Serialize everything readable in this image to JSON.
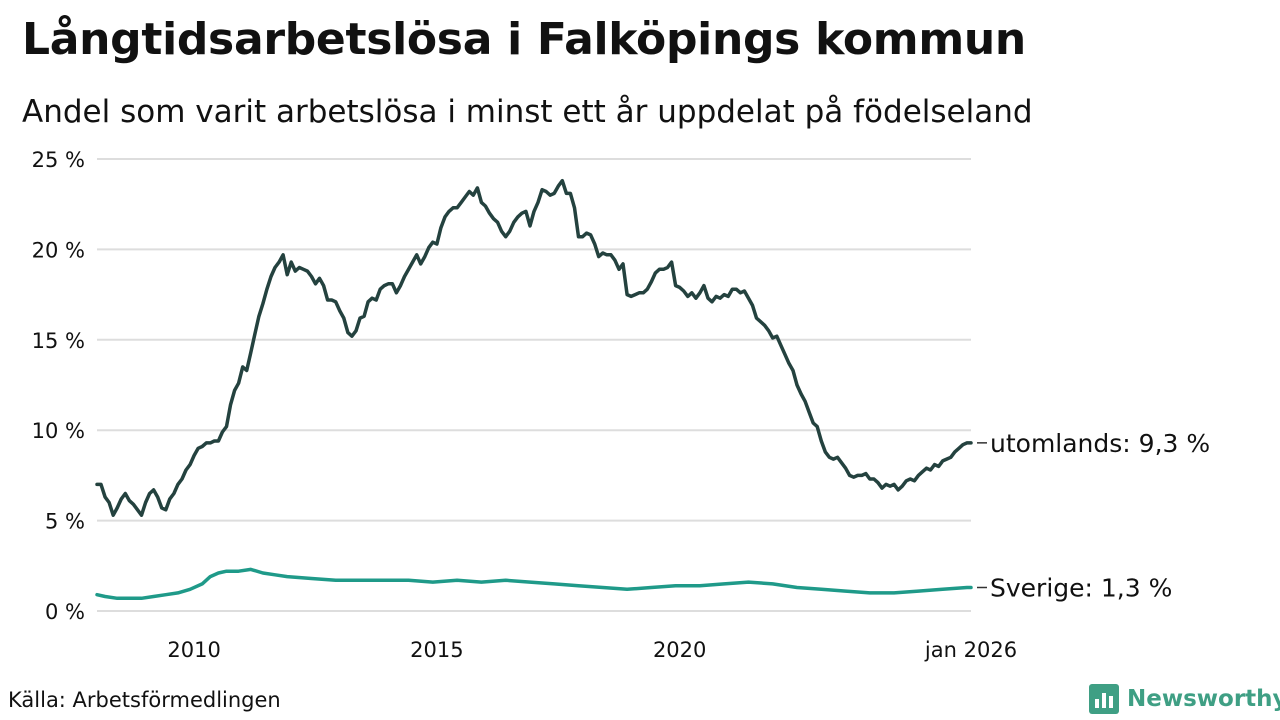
{
  "chart_data": {
    "type": "line",
    "title": "Långtidsarbetslösa i Falköpings kommun",
    "subtitle": "Andel som varit arbetslösa i minst ett år uppdelat på födelseland",
    "xlabel": "",
    "ylabel": "",
    "ylim": [
      0,
      25
    ],
    "xlim": [
      "2008-01",
      "2026-01"
    ],
    "y_ticks": [
      "0 %",
      "5 %",
      "10 %",
      "15 %",
      "20 %",
      "25 %"
    ],
    "x_ticks": [
      "2010",
      "2015",
      "2020",
      "jan 2026"
    ],
    "grid": true,
    "legend": "end-of-line labels",
    "series": [
      {
        "name": "utomlands",
        "end_label": "utomlands: 9,3 %",
        "color": "#24423f",
        "values": [
          [
            "2008-01",
            7.0
          ],
          [
            "2008-02",
            7.0
          ],
          [
            "2008-03",
            6.3
          ],
          [
            "2008-04",
            6.0
          ],
          [
            "2008-05",
            5.3
          ],
          [
            "2008-06",
            5.7
          ],
          [
            "2008-07",
            6.2
          ],
          [
            "2008-08",
            6.5
          ],
          [
            "2008-09",
            6.1
          ],
          [
            "2008-10",
            5.9
          ],
          [
            "2008-11",
            5.6
          ],
          [
            "2008-12",
            5.3
          ],
          [
            "2009-01",
            6.0
          ],
          [
            "2009-02",
            6.5
          ],
          [
            "2009-03",
            6.7
          ],
          [
            "2009-04",
            6.3
          ],
          [
            "2009-05",
            5.7
          ],
          [
            "2009-06",
            5.6
          ],
          [
            "2009-07",
            6.2
          ],
          [
            "2009-08",
            6.5
          ],
          [
            "2009-09",
            7.0
          ],
          [
            "2009-10",
            7.3
          ],
          [
            "2009-11",
            7.8
          ],
          [
            "2009-12",
            8.1
          ],
          [
            "2010-01",
            8.6
          ],
          [
            "2010-02",
            9.0
          ],
          [
            "2010-03",
            9.1
          ],
          [
            "2010-04",
            9.3
          ],
          [
            "2010-05",
            9.3
          ],
          [
            "2010-06",
            9.4
          ],
          [
            "2010-07",
            9.4
          ],
          [
            "2010-08",
            9.9
          ],
          [
            "2010-09",
            10.2
          ],
          [
            "2010-10",
            11.4
          ],
          [
            "2010-11",
            12.2
          ],
          [
            "2010-12",
            12.6
          ],
          [
            "2011-01",
            13.5
          ],
          [
            "2011-02",
            13.3
          ],
          [
            "2011-03",
            14.3
          ],
          [
            "2011-04",
            15.3
          ],
          [
            "2011-05",
            16.3
          ],
          [
            "2011-06",
            17.0
          ],
          [
            "2011-07",
            17.8
          ],
          [
            "2011-08",
            18.5
          ],
          [
            "2011-09",
            19.0
          ],
          [
            "2011-10",
            19.3
          ],
          [
            "2011-11",
            19.7
          ],
          [
            "2011-12",
            18.6
          ],
          [
            "2012-01",
            19.3
          ],
          [
            "2012-02",
            18.8
          ],
          [
            "2012-03",
            19.0
          ],
          [
            "2012-04",
            18.9
          ],
          [
            "2012-05",
            18.8
          ],
          [
            "2012-06",
            18.5
          ],
          [
            "2012-07",
            18.1
          ],
          [
            "2012-08",
            18.4
          ],
          [
            "2012-09",
            18.0
          ],
          [
            "2012-10",
            17.2
          ],
          [
            "2012-11",
            17.2
          ],
          [
            "2012-12",
            17.1
          ],
          [
            "2013-01",
            16.6
          ],
          [
            "2013-02",
            16.2
          ],
          [
            "2013-03",
            15.4
          ],
          [
            "2013-04",
            15.2
          ],
          [
            "2013-05",
            15.5
          ],
          [
            "2013-06",
            16.2
          ],
          [
            "2013-07",
            16.3
          ],
          [
            "2013-08",
            17.1
          ],
          [
            "2013-09",
            17.3
          ],
          [
            "2013-10",
            17.2
          ],
          [
            "2013-11",
            17.8
          ],
          [
            "2013-12",
            18.0
          ],
          [
            "2014-01",
            18.1
          ],
          [
            "2014-02",
            18.1
          ],
          [
            "2014-03",
            17.6
          ],
          [
            "2014-04",
            18.0
          ],
          [
            "2014-05",
            18.5
          ],
          [
            "2014-06",
            18.9
          ],
          [
            "2014-07",
            19.3
          ],
          [
            "2014-08",
            19.7
          ],
          [
            "2014-09",
            19.2
          ],
          [
            "2014-10",
            19.6
          ],
          [
            "2014-11",
            20.1
          ],
          [
            "2014-12",
            20.4
          ],
          [
            "2015-01",
            20.3
          ],
          [
            "2015-02",
            21.2
          ],
          [
            "2015-03",
            21.8
          ],
          [
            "2015-04",
            22.1
          ],
          [
            "2015-05",
            22.3
          ],
          [
            "2015-06",
            22.3
          ],
          [
            "2015-07",
            22.6
          ],
          [
            "2015-08",
            22.9
          ],
          [
            "2015-09",
            23.2
          ],
          [
            "2015-10",
            23.0
          ],
          [
            "2015-11",
            23.4
          ],
          [
            "2015-12",
            22.6
          ],
          [
            "2016-01",
            22.4
          ],
          [
            "2016-02",
            22.0
          ],
          [
            "2016-03",
            21.7
          ],
          [
            "2016-04",
            21.5
          ],
          [
            "2016-05",
            21.0
          ],
          [
            "2016-06",
            20.7
          ],
          [
            "2016-07",
            21.0
          ],
          [
            "2016-08",
            21.5
          ],
          [
            "2016-09",
            21.8
          ],
          [
            "2016-10",
            22.0
          ],
          [
            "2016-11",
            22.1
          ],
          [
            "2016-12",
            21.3
          ],
          [
            "2017-01",
            22.1
          ],
          [
            "2017-02",
            22.6
          ],
          [
            "2017-03",
            23.3
          ],
          [
            "2017-04",
            23.2
          ],
          [
            "2017-05",
            23.0
          ],
          [
            "2017-06",
            23.1
          ],
          [
            "2017-07",
            23.5
          ],
          [
            "2017-08",
            23.8
          ],
          [
            "2017-09",
            23.1
          ],
          [
            "2017-10",
            23.1
          ],
          [
            "2017-11",
            22.3
          ],
          [
            "2017-12",
            20.7
          ],
          [
            "2018-01",
            20.7
          ],
          [
            "2018-02",
            20.9
          ],
          [
            "2018-03",
            20.8
          ],
          [
            "2018-04",
            20.3
          ],
          [
            "2018-05",
            19.6
          ],
          [
            "2018-06",
            19.8
          ],
          [
            "2018-07",
            19.7
          ],
          [
            "2018-08",
            19.7
          ],
          [
            "2018-09",
            19.4
          ],
          [
            "2018-10",
            18.9
          ],
          [
            "2018-11",
            19.2
          ],
          [
            "2018-12",
            17.5
          ],
          [
            "2019-01",
            17.4
          ],
          [
            "2019-02",
            17.5
          ],
          [
            "2019-03",
            17.6
          ],
          [
            "2019-04",
            17.6
          ],
          [
            "2019-05",
            17.8
          ],
          [
            "2019-06",
            18.2
          ],
          [
            "2019-07",
            18.7
          ],
          [
            "2019-08",
            18.9
          ],
          [
            "2019-09",
            18.9
          ],
          [
            "2019-10",
            19.0
          ],
          [
            "2019-11",
            19.3
          ],
          [
            "2019-12",
            18.0
          ],
          [
            "2020-01",
            17.9
          ],
          [
            "2020-02",
            17.7
          ],
          [
            "2020-03",
            17.4
          ],
          [
            "2020-04",
            17.6
          ],
          [
            "2020-05",
            17.3
          ],
          [
            "2020-06",
            17.6
          ],
          [
            "2020-07",
            18.0
          ],
          [
            "2020-08",
            17.3
          ],
          [
            "2020-09",
            17.1
          ],
          [
            "2020-10",
            17.4
          ],
          [
            "2020-11",
            17.3
          ],
          [
            "2020-12",
            17.5
          ],
          [
            "2021-01",
            17.4
          ],
          [
            "2021-02",
            17.8
          ],
          [
            "2021-03",
            17.8
          ],
          [
            "2021-04",
            17.6
          ],
          [
            "2021-05",
            17.7
          ],
          [
            "2021-06",
            17.3
          ],
          [
            "2021-07",
            16.9
          ],
          [
            "2021-08",
            16.2
          ],
          [
            "2021-09",
            16.0
          ],
          [
            "2021-10",
            15.8
          ],
          [
            "2021-11",
            15.5
          ],
          [
            "2021-12",
            15.1
          ],
          [
            "2022-01",
            15.2
          ],
          [
            "2022-02",
            14.7
          ],
          [
            "2022-03",
            14.2
          ],
          [
            "2022-04",
            13.7
          ],
          [
            "2022-05",
            13.3
          ],
          [
            "2022-06",
            12.5
          ],
          [
            "2022-07",
            12.0
          ],
          [
            "2022-08",
            11.6
          ],
          [
            "2022-09",
            11.0
          ],
          [
            "2022-10",
            10.4
          ],
          [
            "2022-11",
            10.2
          ],
          [
            "2022-12",
            9.4
          ],
          [
            "2023-01",
            8.8
          ],
          [
            "2023-02",
            8.5
          ],
          [
            "2023-03",
            8.4
          ],
          [
            "2023-04",
            8.5
          ],
          [
            "2023-05",
            8.2
          ],
          [
            "2023-06",
            7.9
          ],
          [
            "2023-07",
            7.5
          ],
          [
            "2023-08",
            7.4
          ],
          [
            "2023-09",
            7.5
          ],
          [
            "2023-10",
            7.5
          ],
          [
            "2023-11",
            7.6
          ],
          [
            "2023-12",
            7.3
          ],
          [
            "2024-01",
            7.3
          ],
          [
            "2024-02",
            7.1
          ],
          [
            "2024-03",
            6.8
          ],
          [
            "2024-04",
            7.0
          ],
          [
            "2024-05",
            6.9
          ],
          [
            "2024-06",
            7.0
          ],
          [
            "2024-07",
            6.7
          ],
          [
            "2024-08",
            6.9
          ],
          [
            "2024-09",
            7.2
          ],
          [
            "2024-10",
            7.3
          ],
          [
            "2024-11",
            7.2
          ],
          [
            "2024-12",
            7.5
          ],
          [
            "2025-01",
            7.7
          ],
          [
            "2025-02",
            7.9
          ],
          [
            "2025-03",
            7.8
          ],
          [
            "2025-04",
            8.1
          ],
          [
            "2025-05",
            8.0
          ],
          [
            "2025-06",
            8.3
          ],
          [
            "2025-07",
            8.4
          ],
          [
            "2025-08",
            8.5
          ],
          [
            "2025-09",
            8.8
          ],
          [
            "2025-10",
            9.0
          ],
          [
            "2025-11",
            9.2
          ],
          [
            "2025-12",
            9.3
          ],
          [
            "2026-01",
            9.3
          ]
        ]
      },
      {
        "name": "Sverige",
        "end_label": "Sverige: 1,3 %",
        "color": "#1f9a89",
        "values": [
          [
            "2008-01",
            0.9
          ],
          [
            "2008-03",
            0.8
          ],
          [
            "2008-06",
            0.7
          ],
          [
            "2008-09",
            0.7
          ],
          [
            "2008-12",
            0.7
          ],
          [
            "2009-03",
            0.8
          ],
          [
            "2009-06",
            0.9
          ],
          [
            "2009-09",
            1.0
          ],
          [
            "2009-12",
            1.2
          ],
          [
            "2010-03",
            1.5
          ],
          [
            "2010-05",
            1.9
          ],
          [
            "2010-07",
            2.1
          ],
          [
            "2010-09",
            2.2
          ],
          [
            "2010-12",
            2.2
          ],
          [
            "2011-03",
            2.3
          ],
          [
            "2011-06",
            2.1
          ],
          [
            "2011-09",
            2.0
          ],
          [
            "2011-12",
            1.9
          ],
          [
            "2012-06",
            1.8
          ],
          [
            "2012-12",
            1.7
          ],
          [
            "2013-06",
            1.7
          ],
          [
            "2013-12",
            1.7
          ],
          [
            "2014-06",
            1.7
          ],
          [
            "2014-12",
            1.6
          ],
          [
            "2015-06",
            1.7
          ],
          [
            "2015-12",
            1.6
          ],
          [
            "2016-06",
            1.7
          ],
          [
            "2016-12",
            1.6
          ],
          [
            "2017-06",
            1.5
          ],
          [
            "2017-12",
            1.4
          ],
          [
            "2018-06",
            1.3
          ],
          [
            "2018-12",
            1.2
          ],
          [
            "2019-06",
            1.3
          ],
          [
            "2019-12",
            1.4
          ],
          [
            "2020-06",
            1.4
          ],
          [
            "2020-12",
            1.5
          ],
          [
            "2021-06",
            1.6
          ],
          [
            "2021-12",
            1.5
          ],
          [
            "2022-06",
            1.3
          ],
          [
            "2022-12",
            1.2
          ],
          [
            "2023-06",
            1.1
          ],
          [
            "2023-12",
            1.0
          ],
          [
            "2024-06",
            1.0
          ],
          [
            "2024-12",
            1.1
          ],
          [
            "2025-06",
            1.2
          ],
          [
            "2025-12",
            1.3
          ],
          [
            "2026-01",
            1.3
          ]
        ]
      }
    ]
  },
  "source": "Källa: Arbetsförmedlingen",
  "brand": {
    "name": "Newsworthy",
    "icon": "newsworthy-logo-icon",
    "color": "#3f9f84"
  }
}
